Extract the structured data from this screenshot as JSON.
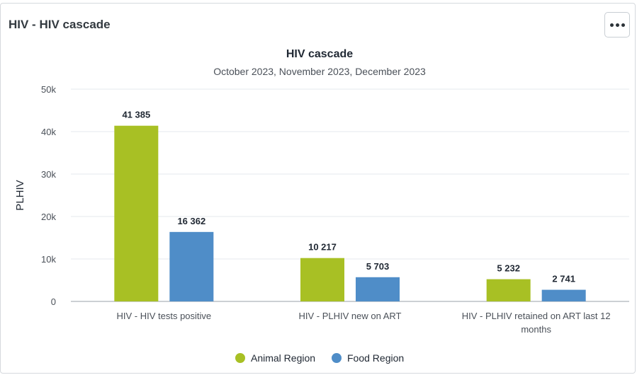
{
  "card": {
    "title": "HIV - HIV cascade",
    "menu_icon": "more-horizontal-icon"
  },
  "colors": {
    "series_0": "#a8c024",
    "series_1": "#4f8dc8",
    "grid": "#e6e9ec",
    "axis": "#9aa1a8"
  },
  "chart_data": {
    "type": "bar",
    "title": "HIV cascade",
    "subtitle": "October 2023, November 2023, December 2023",
    "ylabel": "PLHIV",
    "xlabel": "",
    "ylim": [
      0,
      50000
    ],
    "yticks": [
      0,
      10000,
      20000,
      30000,
      40000,
      50000
    ],
    "ytick_labels": [
      "0",
      "10k",
      "20k",
      "30k",
      "40k",
      "50k"
    ],
    "categories": [
      [
        "HIV - HIV tests positive"
      ],
      [
        "HIV - PLHIV new on ART"
      ],
      [
        "HIV - PLHIV retained on ART last 12",
        "months"
      ]
    ],
    "series": [
      {
        "name": "Animal Region",
        "values": [
          41385,
          10217,
          5232
        ],
        "labels": [
          "41 385",
          "10 217",
          "5 232"
        ]
      },
      {
        "name": "Food Region",
        "values": [
          16362,
          5703,
          2741
        ],
        "labels": [
          "16 362",
          "5 703",
          "2 741"
        ]
      }
    ],
    "grid": true,
    "legend": "bottom-center"
  }
}
